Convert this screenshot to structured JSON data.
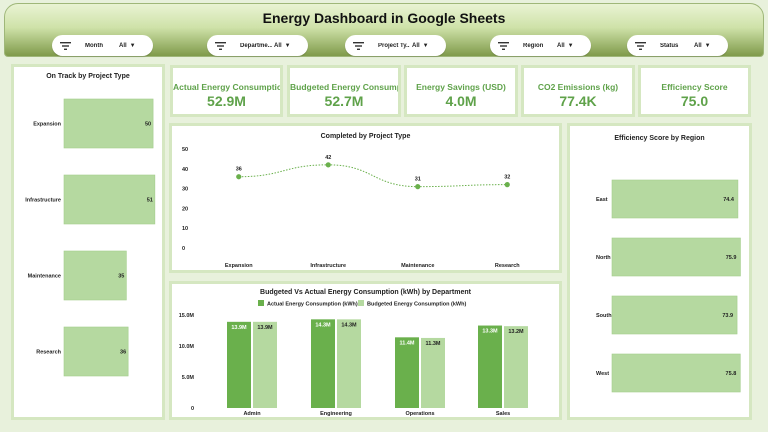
{
  "header": {
    "title": "Energy Dashboard in Google Sheets"
  },
  "filters": [
    {
      "label": "Month",
      "value": "All"
    },
    {
      "label": "Departme...",
      "value": "All"
    },
    {
      "label": "Project Ty...",
      "value": "All"
    },
    {
      "label": "Region",
      "value": "All"
    },
    {
      "label": "Status",
      "value": "All"
    }
  ],
  "kpis": [
    {
      "label": "Actual Energy Consumptio...",
      "value": "52.9M"
    },
    {
      "label": "Budgeted Energy Consump...",
      "value": "52.7M"
    },
    {
      "label": "Energy Savings (USD)",
      "value": "4.0M"
    },
    {
      "label": "CO2 Emissions (kg)",
      "value": "77.4K"
    },
    {
      "label": "Efficiency Score",
      "value": "75.0"
    }
  ],
  "colors": {
    "bar": "#b5d9a0",
    "bar_border": "#a3cd8b",
    "actual": "#6ab04c",
    "budget": "#b5d9a0",
    "line": "#6ab04c",
    "kpi_text": "#5fa24a"
  },
  "chart_data": [
    {
      "type": "bar",
      "orientation": "horizontal",
      "title": "On Track  by Project Type",
      "categories": [
        "Expansion",
        "Infrastructure",
        "Maintenance",
        "Research"
      ],
      "values": [
        50,
        51,
        35,
        36
      ],
      "xlim": [
        0,
        55
      ]
    },
    {
      "type": "line",
      "title": "Completed  by Project Type",
      "categories": [
        "Expansion",
        "Infrastructure",
        "Maintenance",
        "Research"
      ],
      "values": [
        36,
        42,
        31,
        32
      ],
      "ylim": [
        0,
        50
      ],
      "yticks": [
        "0",
        "10",
        "20",
        "30",
        "40",
        "50"
      ]
    },
    {
      "type": "bar",
      "orientation": "horizontal",
      "title": "Efficiency Score by Region",
      "categories": [
        "East",
        "North",
        "South",
        "West"
      ],
      "values": [
        74.4,
        75.9,
        73.9,
        75.8
      ],
      "value_labels": [
        "74.4",
        "75.9",
        "73.9",
        "75.8"
      ],
      "xlim": [
        0,
        78
      ]
    },
    {
      "type": "bar",
      "title": "Budgeted Vs Actual Energy Consumption (kWh) by Department",
      "categories": [
        "Admin",
        "Engineering",
        "Operations",
        "Sales"
      ],
      "series": [
        {
          "name": "Actual Energy Consumption (kWh)",
          "values": [
            13.9,
            14.3,
            11.4,
            13.3
          ],
          "labels": [
            "13.9M",
            "14.3M",
            "11.4M",
            "13.3M"
          ]
        },
        {
          "name": "Budgeted Energy Consumption (kWh)",
          "values": [
            13.9,
            14.3,
            11.3,
            13.2
          ],
          "labels": [
            "13.9M",
            "14.3M",
            "11.3M",
            "13.2M"
          ]
        }
      ],
      "ylim": [
        0,
        15
      ],
      "yticks": [
        "0",
        "5.0M",
        "10.0M",
        "15.0M"
      ],
      "legend": "top"
    }
  ]
}
